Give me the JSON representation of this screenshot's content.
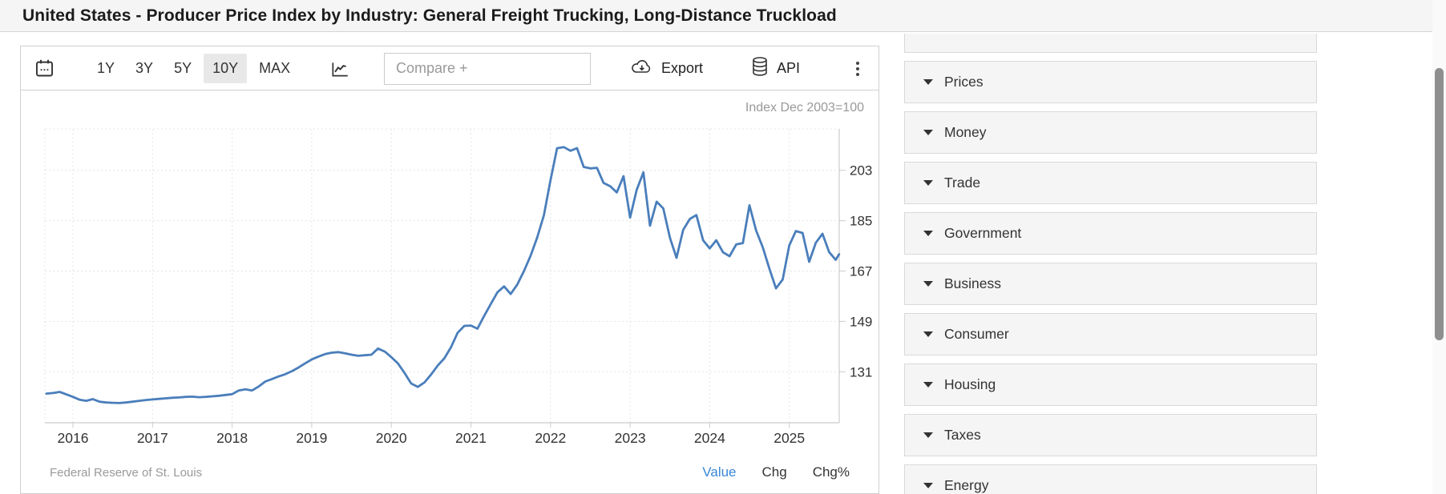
{
  "page": {
    "title": "United States - Producer Price Index by Industry: General Freight Trucking, Long-Distance Truckload"
  },
  "toolbar": {
    "ranges": [
      "1Y",
      "3Y",
      "5Y",
      "10Y",
      "MAX"
    ],
    "selected_range": "10Y",
    "compare_placeholder": "Compare +",
    "export_label": "Export",
    "api_label": "API",
    "icons": [
      "calendar-icon",
      "line-chart-icon",
      "cloud-download-icon",
      "database-icon",
      "kebab-menu-icon"
    ]
  },
  "chart_data": {
    "type": "line",
    "note": "Index Dec 2003=100",
    "x_tick_labels": [
      "2016",
      "2017",
      "2018",
      "2019",
      "2020",
      "2021",
      "2022",
      "2023",
      "2024",
      "2025"
    ],
    "y_tick_labels": [
      "203",
      "185",
      "167",
      "149",
      "131"
    ],
    "y_tick_values": [
      203,
      185,
      167,
      149,
      131
    ],
    "ylim": [
      112,
      218
    ],
    "xlim": [
      2015.65,
      2025.65
    ],
    "grid": "dotted",
    "legend_position": "none",
    "series": [
      {
        "name": "PPI General Freight Trucking, Long-Distance Truckload",
        "color": "#4a7ebb",
        "points": [
          [
            2015.667,
            123.2
          ],
          [
            2015.75,
            123.4
          ],
          [
            2015.833,
            123.8
          ],
          [
            2015.917,
            122.9
          ],
          [
            2016,
            122
          ],
          [
            2016.083,
            121
          ],
          [
            2016.167,
            120.6
          ],
          [
            2016.25,
            121.2
          ],
          [
            2016.333,
            120.3
          ],
          [
            2016.417,
            120
          ],
          [
            2016.5,
            119.9
          ],
          [
            2016.583,
            119.8
          ],
          [
            2016.667,
            120
          ],
          [
            2016.75,
            120.3
          ],
          [
            2016.833,
            120.6
          ],
          [
            2016.917,
            120.9
          ],
          [
            2017,
            121.1
          ],
          [
            2017.083,
            121.3
          ],
          [
            2017.167,
            121.5
          ],
          [
            2017.25,
            121.7
          ],
          [
            2017.333,
            121.8
          ],
          [
            2017.417,
            122
          ],
          [
            2017.5,
            122.1
          ],
          [
            2017.583,
            121.9
          ],
          [
            2017.667,
            122
          ],
          [
            2017.75,
            122.2
          ],
          [
            2017.833,
            122.4
          ],
          [
            2017.917,
            122.7
          ],
          [
            2018,
            123
          ],
          [
            2018.083,
            124.3
          ],
          [
            2018.167,
            124.7
          ],
          [
            2018.25,
            124.3
          ],
          [
            2018.333,
            125.7
          ],
          [
            2018.417,
            127.5
          ],
          [
            2018.5,
            128.4
          ],
          [
            2018.583,
            129.3
          ],
          [
            2018.667,
            130.1
          ],
          [
            2018.75,
            131.2
          ],
          [
            2018.833,
            132.5
          ],
          [
            2018.917,
            134
          ],
          [
            2019,
            135.4
          ],
          [
            2019.083,
            136.4
          ],
          [
            2019.167,
            137.3
          ],
          [
            2019.25,
            137.8
          ],
          [
            2019.333,
            138
          ],
          [
            2019.417,
            137.6
          ],
          [
            2019.5,
            137.1
          ],
          [
            2019.583,
            136.7
          ],
          [
            2019.667,
            136.9
          ],
          [
            2019.75,
            137.1
          ],
          [
            2019.833,
            139.3
          ],
          [
            2019.917,
            138.2
          ],
          [
            2020,
            136.2
          ],
          [
            2020.083,
            134
          ],
          [
            2020.167,
            130.5
          ],
          [
            2020.25,
            126.8
          ],
          [
            2020.333,
            125.6
          ],
          [
            2020.417,
            127.2
          ],
          [
            2020.5,
            130
          ],
          [
            2020.583,
            133.2
          ],
          [
            2020.667,
            135.8
          ],
          [
            2020.75,
            139.8
          ],
          [
            2020.833,
            144.9
          ],
          [
            2020.917,
            147.4
          ],
          [
            2021,
            147.5
          ],
          [
            2021.083,
            146.4
          ],
          [
            2021.167,
            151
          ],
          [
            2021.25,
            155.2
          ],
          [
            2021.333,
            159.4
          ],
          [
            2021.417,
            161.5
          ],
          [
            2021.5,
            158.8
          ],
          [
            2021.583,
            162.2
          ],
          [
            2021.667,
            167
          ],
          [
            2021.75,
            172.5
          ],
          [
            2021.833,
            179
          ],
          [
            2021.917,
            187
          ],
          [
            2022,
            199.5
          ],
          [
            2022.083,
            210.9
          ],
          [
            2022.167,
            211.3
          ],
          [
            2022.25,
            210
          ],
          [
            2022.333,
            210.9
          ],
          [
            2022.417,
            204.2
          ],
          [
            2022.5,
            203.7
          ],
          [
            2022.583,
            203.9
          ],
          [
            2022.667,
            198.5
          ],
          [
            2022.75,
            197.3
          ],
          [
            2022.833,
            195.1
          ],
          [
            2022.917,
            200.9
          ],
          [
            2023,
            186.1
          ],
          [
            2023.083,
            196
          ],
          [
            2023.167,
            202.3
          ],
          [
            2023.25,
            183.2
          ],
          [
            2023.333,
            191.8
          ],
          [
            2023.417,
            189.4
          ],
          [
            2023.5,
            178.9
          ],
          [
            2023.583,
            171.7
          ],
          [
            2023.667,
            181.7
          ],
          [
            2023.75,
            185.6
          ],
          [
            2023.833,
            187
          ],
          [
            2023.917,
            178
          ],
          [
            2024,
            175.1
          ],
          [
            2024.083,
            178
          ],
          [
            2024.167,
            173.7
          ],
          [
            2024.25,
            172.3
          ],
          [
            2024.333,
            176.5
          ],
          [
            2024.417,
            177
          ],
          [
            2024.5,
            190.5
          ],
          [
            2024.583,
            181.5
          ],
          [
            2024.667,
            175.5
          ],
          [
            2024.75,
            167.8
          ],
          [
            2024.833,
            160.8
          ],
          [
            2024.917,
            164
          ],
          [
            2025,
            176.2
          ],
          [
            2025.083,
            181.3
          ],
          [
            2025.167,
            180.6
          ],
          [
            2025.25,
            170.3
          ],
          [
            2025.333,
            177.1
          ],
          [
            2025.417,
            180.3
          ],
          [
            2025.5,
            173.8
          ],
          [
            2025.583,
            171
          ],
          [
            2025.625,
            173
          ]
        ]
      }
    ]
  },
  "footer": {
    "source": "Federal Reserve of St. Louis",
    "links": [
      {
        "label": "Value",
        "active": true
      },
      {
        "label": "Chg",
        "active": false
      },
      {
        "label": "Chg%",
        "active": false
      }
    ]
  },
  "sidebar": {
    "items": [
      "Prices",
      "Money",
      "Trade",
      "Government",
      "Business",
      "Consumer",
      "Housing",
      "Taxes",
      "Energy"
    ]
  },
  "colors": {
    "line": "#4a7ebb",
    "grid": "#e4e4e4",
    "axis": "#cccccc",
    "tick_text": "#333333",
    "note_text": "#999999",
    "active_link": "#3a87d8",
    "panel_bg": "#f5f5f5",
    "selected_range_bg": "#e8e8e8"
  }
}
